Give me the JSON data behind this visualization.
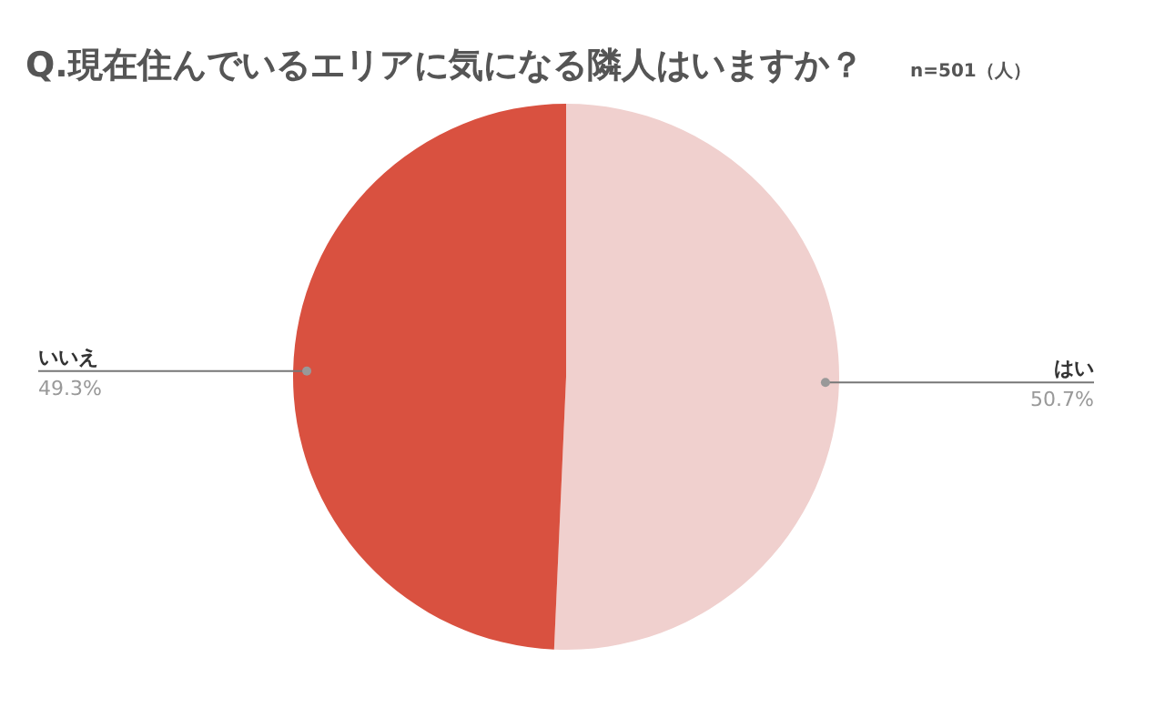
{
  "chart_data": {
    "type": "pie",
    "title": "Q.現在住んでいるエリアに気になる隣人はいますか？",
    "subtitle": "n=501（人）",
    "categories": [
      "はい",
      "いいえ"
    ],
    "values": [
      50.7,
      49.3
    ],
    "value_labels": [
      "50.7%",
      "49.3%"
    ],
    "colors": [
      "#f0d0ce",
      "#d95140"
    ],
    "legend": false
  }
}
